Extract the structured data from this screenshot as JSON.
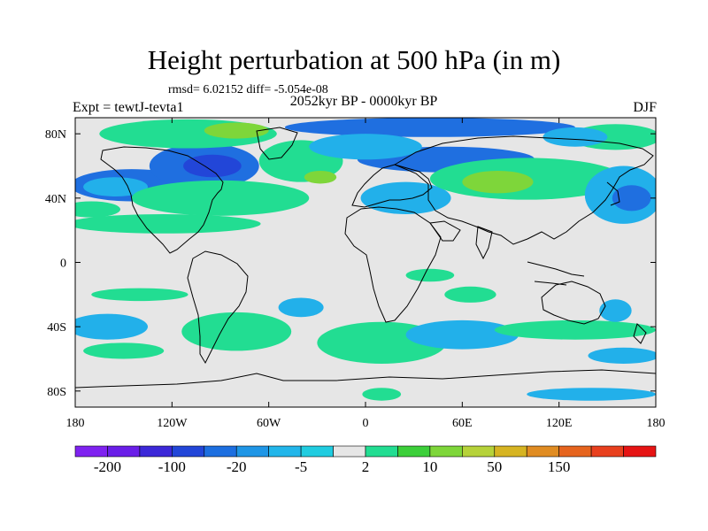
{
  "title": "Height perturbation at 500 hPa (in m)",
  "stats": "rmsd= 6.02152 diff= -5.054e-08",
  "experiment": "Expt = tewtJ-tevta1",
  "period": "2052kyr BP - 0000kyr BP",
  "season": "DJF",
  "map": {
    "projection": "equirectangular",
    "lon_range": [
      -180,
      180
    ],
    "lat_range": [
      -90,
      90
    ],
    "lon_ticks": [
      {
        "value": -180,
        "label": "180"
      },
      {
        "value": -120,
        "label": "120W"
      },
      {
        "value": -60,
        "label": "60W"
      },
      {
        "value": 0,
        "label": "0"
      },
      {
        "value": 60,
        "label": "60E"
      },
      {
        "value": 120,
        "label": "120E"
      },
      {
        "value": 180,
        "label": "180"
      }
    ],
    "lat_ticks": [
      {
        "value": 80,
        "label": "80N"
      },
      {
        "value": 40,
        "label": "40N"
      },
      {
        "value": 0,
        "label": "0"
      },
      {
        "value": -40,
        "label": "40S"
      },
      {
        "value": -80,
        "label": "80S"
      }
    ]
  },
  "colorbar": {
    "colors": [
      "#7f22f0",
      "#6a1ee8",
      "#3c28d8",
      "#2246d8",
      "#1d6fe0",
      "#1f96e6",
      "#22b6ea",
      "#20cce0",
      "#e6e6e6",
      "#22dd92",
      "#3ccf3a",
      "#7ed63a",
      "#b6d23a",
      "#d6b422",
      "#e08c22",
      "#e6641e",
      "#e8401e",
      "#e61414"
    ],
    "labels": [
      "-200",
      "-100",
      "-20",
      "-5",
      "2",
      "10",
      "50",
      "150"
    ]
  },
  "field_blobs": [
    {
      "lon": -145,
      "lat": 48,
      "rlon": 38,
      "rlat": 10,
      "level": -20
    },
    {
      "lon": -155,
      "lat": 47,
      "rlon": 20,
      "rlat": 6,
      "level": -5
    },
    {
      "lon": -170,
      "lat": 33,
      "rlon": 18,
      "rlat": 5,
      "level": 10
    },
    {
      "lon": -125,
      "lat": 24,
      "rlon": 60,
      "rlat": 6,
      "level": 10
    },
    {
      "lon": -100,
      "lat": 60,
      "rlon": 34,
      "rlat": 14,
      "level": -20
    },
    {
      "lon": -95,
      "lat": 60,
      "rlon": 18,
      "rlat": 7,
      "level": -100
    },
    {
      "lon": -110,
      "lat": 80,
      "rlon": 55,
      "rlat": 9,
      "level": 10
    },
    {
      "lon": -80,
      "lat": 82,
      "rlon": 20,
      "rlat": 5,
      "level": 50
    },
    {
      "lon": -90,
      "lat": 40,
      "rlon": 55,
      "rlat": 11,
      "level": 10
    },
    {
      "lon": -40,
      "lat": 63,
      "rlon": 26,
      "rlat": 13,
      "level": 10
    },
    {
      "lon": -28,
      "lat": 53,
      "rlon": 10,
      "rlat": 4,
      "level": 50
    },
    {
      "lon": 40,
      "lat": 84,
      "rlon": 90,
      "rlat": 6,
      "level": -20
    },
    {
      "lon": 50,
      "lat": 64,
      "rlon": 55,
      "rlat": 8,
      "level": -20
    },
    {
      "lon": 0,
      "lat": 72,
      "rlon": 35,
      "rlat": 8,
      "level": -5
    },
    {
      "lon": 25,
      "lat": 40,
      "rlon": 28,
      "rlat": 10,
      "level": -5
    },
    {
      "lon": 100,
      "lat": 52,
      "rlon": 60,
      "rlat": 13,
      "level": 10
    },
    {
      "lon": 82,
      "lat": 50,
      "rlon": 22,
      "rlat": 7,
      "level": 50
    },
    {
      "lon": 160,
      "lat": 42,
      "rlon": 24,
      "rlat": 18,
      "level": -5
    },
    {
      "lon": 165,
      "lat": 40,
      "rlon": 12,
      "rlat": 8,
      "level": -20
    },
    {
      "lon": 155,
      "lat": 78,
      "rlon": 28,
      "rlat": 8,
      "level": 10
    },
    {
      "lon": 130,
      "lat": 78,
      "rlon": 20,
      "rlat": 6,
      "level": -5
    },
    {
      "lon": -140,
      "lat": -20,
      "rlon": 30,
      "rlat": 4,
      "level": 10
    },
    {
      "lon": -160,
      "lat": -40,
      "rlon": 25,
      "rlat": 8,
      "level": -5
    },
    {
      "lon": -150,
      "lat": -55,
      "rlon": 25,
      "rlat": 5,
      "level": 10
    },
    {
      "lon": -80,
      "lat": -43,
      "rlon": 34,
      "rlat": 12,
      "level": 10
    },
    {
      "lon": -40,
      "lat": -28,
      "rlon": 14,
      "rlat": 6,
      "level": -5
    },
    {
      "lon": 10,
      "lat": -50,
      "rlon": 40,
      "rlat": 13,
      "level": 10
    },
    {
      "lon": 60,
      "lat": -45,
      "rlon": 35,
      "rlat": 9,
      "level": -5
    },
    {
      "lon": 65,
      "lat": -20,
      "rlon": 16,
      "rlat": 5,
      "level": 10
    },
    {
      "lon": 40,
      "lat": -8,
      "rlon": 15,
      "rlat": 4,
      "level": 10
    },
    {
      "lon": 130,
      "lat": -42,
      "rlon": 50,
      "rlat": 6,
      "level": 10
    },
    {
      "lon": 155,
      "lat": -30,
      "rlon": 10,
      "rlat": 7,
      "level": -5
    },
    {
      "lon": 160,
      "lat": -58,
      "rlon": 22,
      "rlat": 5,
      "level": -5
    },
    {
      "lon": 10,
      "lat": -82,
      "rlon": 12,
      "rlat": 4,
      "level": 10
    },
    {
      "lon": 140,
      "lat": -82,
      "rlon": 40,
      "rlat": 4,
      "level": -5
    }
  ]
}
